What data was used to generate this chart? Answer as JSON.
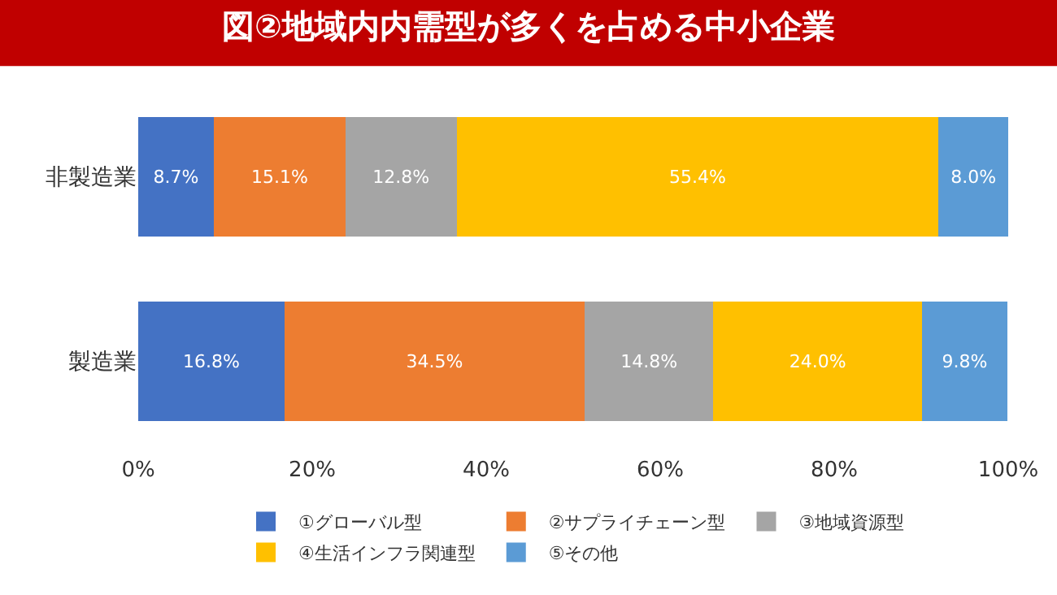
{
  "chart_data": {
    "type": "bar",
    "orientation": "horizontal",
    "stacked": true,
    "title": "図②地域内内需型が多くを占める中小企業",
    "categories": [
      "非製造業",
      "製造業"
    ],
    "series": [
      {
        "name": "①グローバル型",
        "color": "#4472c4",
        "values": [
          8.7,
          16.8
        ],
        "value_labels": [
          "8.7%",
          "16.8%"
        ]
      },
      {
        "name": "②サプライチェーン型",
        "color": "#ed7d31",
        "values": [
          15.1,
          34.5
        ],
        "value_labels": [
          "15.1%",
          "34.5%"
        ]
      },
      {
        "name": "③地域資源型",
        "color": "#a5a5a5",
        "values": [
          12.8,
          14.8
        ],
        "value_labels": [
          "12.8%",
          "14.8%"
        ]
      },
      {
        "name": "④生活インフラ関連型",
        "color": "#ffc000",
        "values": [
          55.4,
          24.0
        ],
        "value_labels": [
          "55.4%",
          "24.0%"
        ]
      },
      {
        "name": "⑤その他",
        "color": "#5b9bd5",
        "values": [
          8.0,
          9.8
        ],
        "value_labels": [
          "8.0%",
          "9.8%"
        ]
      }
    ],
    "xlim": [
      0,
      100
    ],
    "xticks": [
      {
        "value": 0,
        "label": "0%"
      },
      {
        "value": 20,
        "label": "20%"
      },
      {
        "value": 40,
        "label": "40%"
      },
      {
        "value": 60,
        "label": "60%"
      },
      {
        "value": 80,
        "label": "80%"
      },
      {
        "value": 100,
        "label": "100%"
      }
    ],
    "grid": false,
    "legend": "bottom"
  }
}
